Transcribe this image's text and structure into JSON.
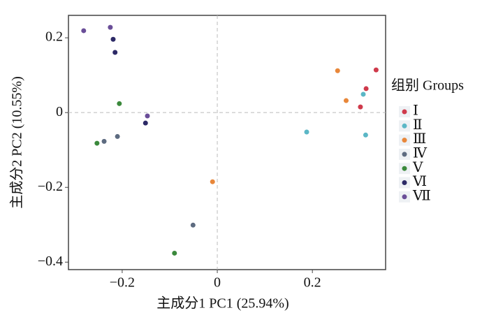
{
  "chart_data": {
    "type": "scatter",
    "x_label": "主成分1 PC1 (25.94%)",
    "y_label": "主成分2 PC2 (10.55%)",
    "legend_title": "组别 Groups",
    "legend_position": "right",
    "zero_lines": true,
    "xlim": [
      -0.313,
      0.354
    ],
    "ylim": [
      -0.42,
      0.26
    ],
    "xticks": [
      {
        "value": -0.2,
        "label": "−0.2"
      },
      0,
      0.2
    ],
    "yticks": [
      0.2,
      0,
      {
        "value": -0.2,
        "label": "−0.2"
      },
      {
        "value": -0.4,
        "label": "−0.4"
      }
    ],
    "series": [
      {
        "name": "Ⅰ",
        "color": "#cf3a4b",
        "x": [
          0.334,
          0.313,
          0.301
        ],
        "values": [
          0.114,
          0.064,
          0.015
        ]
      },
      {
        "name": "Ⅱ",
        "color": "#5bb7c6",
        "x": [
          0.307,
          0.312,
          0.188
        ],
        "values": [
          0.049,
          -0.06,
          -0.052
        ]
      },
      {
        "name": "Ⅲ",
        "color": "#e8873a",
        "x": [
          0.253,
          0.271,
          -0.01
        ],
        "values": [
          0.112,
          0.032,
          -0.185
        ]
      },
      {
        "name": "Ⅳ",
        "color": "#5d6b80",
        "x": [
          -0.238,
          -0.21,
          -0.051
        ],
        "values": [
          -0.077,
          -0.064,
          -0.301
        ]
      },
      {
        "name": "Ⅴ",
        "color": "#3b893c",
        "x": [
          -0.253,
          -0.206,
          -0.09
        ],
        "values": [
          -0.082,
          0.024,
          -0.376
        ]
      },
      {
        "name": "Ⅵ",
        "color": "#2c2966",
        "x": [
          -0.219,
          -0.215,
          -0.151
        ],
        "values": [
          0.196,
          0.161,
          -0.028
        ]
      },
      {
        "name": "Ⅶ",
        "color": "#6a4e98",
        "x": [
          -0.281,
          -0.225,
          -0.147
        ],
        "values": [
          0.219,
          0.228,
          -0.009
        ]
      }
    ]
  }
}
